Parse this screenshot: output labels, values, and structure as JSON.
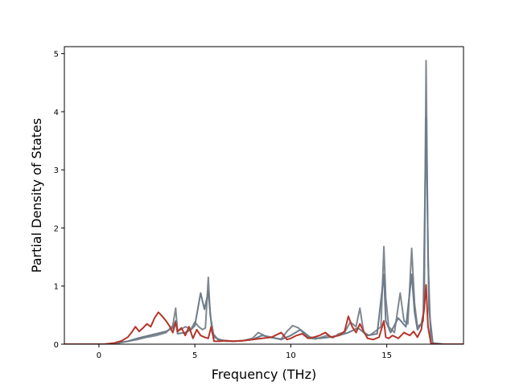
{
  "chart_data": {
    "type": "line",
    "title": "",
    "xlabel": "Frequency (THz)",
    "ylabel": "Partial Density of States",
    "xlim": [
      -1.8,
      19.0
    ],
    "ylim": [
      0,
      5.12
    ],
    "x_ticks": [
      0,
      5,
      10,
      15
    ],
    "y_ticks": [
      0,
      1,
      2,
      3,
      4,
      5
    ],
    "grid": false,
    "legend": "none",
    "series": [
      {
        "color": "#808890",
        "x": [
          -1.8,
          0.3,
          1.0,
          1.5,
          2.0,
          2.5,
          3.0,
          3.5,
          3.85,
          4.0,
          4.1,
          4.5,
          4.8,
          5.0,
          5.2,
          5.4,
          5.55,
          5.7,
          5.8,
          6.0,
          6.3,
          6.6,
          7.0,
          7.5,
          8.0,
          8.3,
          8.6,
          8.9,
          9.2,
          9.5,
          9.8,
          10.1,
          10.4,
          10.7,
          11.0,
          11.3,
          11.6,
          11.9,
          12.2,
          12.5,
          12.8,
          13.1,
          13.4,
          13.6,
          13.8,
          14.1,
          14.4,
          14.7,
          14.85,
          14.95,
          15.1,
          15.4,
          15.7,
          15.9,
          16.1,
          16.3,
          16.45,
          16.6,
          16.8,
          16.95,
          17.05,
          17.15,
          17.3,
          17.5,
          18.0,
          19.0
        ],
        "y": [
          0,
          0,
          0.02,
          0.05,
          0.08,
          0.12,
          0.15,
          0.2,
          0.32,
          0.62,
          0.22,
          0.3,
          0.26,
          0.38,
          0.3,
          0.25,
          0.28,
          1.15,
          0.5,
          0.12,
          0.08,
          0.05,
          0.05,
          0.06,
          0.1,
          0.2,
          0.15,
          0.12,
          0.1,
          0.09,
          0.22,
          0.32,
          0.28,
          0.18,
          0.1,
          0.09,
          0.12,
          0.15,
          0.11,
          0.18,
          0.2,
          0.38,
          0.3,
          0.62,
          0.2,
          0.15,
          0.22,
          0.3,
          1.68,
          0.8,
          0.3,
          0.2,
          0.88,
          0.4,
          0.35,
          1.65,
          0.7,
          0.3,
          0.35,
          0.6,
          4.88,
          1.5,
          0.02,
          0,
          0,
          0
        ]
      },
      {
        "color": "#6c7b8a",
        "x": [
          -1.8,
          0.3,
          1.0,
          1.5,
          2.0,
          2.5,
          3.0,
          3.5,
          3.85,
          4.0,
          4.1,
          4.5,
          4.8,
          5.0,
          5.3,
          5.5,
          5.7,
          5.9,
          6.2,
          6.6,
          7.0,
          7.5,
          8.0,
          8.5,
          9.0,
          9.5,
          10.0,
          10.5,
          11.0,
          11.5,
          12.0,
          12.5,
          13.0,
          13.5,
          14.0,
          14.5,
          14.85,
          14.95,
          15.2,
          15.6,
          16.0,
          16.3,
          16.45,
          16.6,
          16.9,
          17.05,
          17.2,
          17.4,
          18.0,
          19.0
        ],
        "y": [
          0,
          0,
          0.02,
          0.05,
          0.1,
          0.14,
          0.18,
          0.22,
          0.28,
          0.4,
          0.18,
          0.2,
          0.25,
          0.32,
          0.88,
          0.6,
          0.9,
          0.2,
          0.08,
          0.06,
          0.05,
          0.06,
          0.08,
          0.15,
          0.12,
          0.08,
          0.15,
          0.25,
          0.12,
          0.1,
          0.12,
          0.15,
          0.2,
          0.28,
          0.15,
          0.18,
          1.2,
          0.4,
          0.2,
          0.45,
          0.3,
          1.2,
          0.55,
          0.25,
          0.4,
          3.9,
          0.6,
          0.02,
          0,
          0
        ]
      },
      {
        "color": "#b5352a",
        "x": [
          -1.8,
          0.3,
          0.8,
          1.2,
          1.5,
          1.7,
          1.9,
          2.1,
          2.3,
          2.5,
          2.7,
          2.9,
          3.1,
          3.3,
          3.5,
          3.7,
          3.85,
          4.0,
          4.1,
          4.3,
          4.5,
          4.7,
          4.9,
          5.1,
          5.3,
          5.5,
          5.7,
          5.85,
          6.0,
          6.3,
          6.6,
          7.0,
          7.5,
          8.0,
          8.5,
          9.0,
          9.5,
          9.8,
          10.0,
          10.3,
          10.6,
          10.9,
          11.2,
          11.5,
          11.8,
          12.1,
          12.5,
          12.8,
          13.0,
          13.2,
          13.4,
          13.6,
          13.8,
          14.0,
          14.3,
          14.6,
          14.85,
          14.95,
          15.1,
          15.3,
          15.6,
          15.9,
          16.2,
          16.4,
          16.6,
          16.8,
          16.95,
          17.05,
          17.15,
          17.3,
          17.5,
          18.0,
          19.0
        ],
        "y": [
          0,
          0,
          0.02,
          0.06,
          0.12,
          0.2,
          0.3,
          0.22,
          0.28,
          0.35,
          0.3,
          0.45,
          0.55,
          0.48,
          0.4,
          0.3,
          0.2,
          0.38,
          0.22,
          0.28,
          0.15,
          0.3,
          0.1,
          0.25,
          0.15,
          0.12,
          0.1,
          0.3,
          0.05,
          0.05,
          0.06,
          0.05,
          0.06,
          0.08,
          0.1,
          0.12,
          0.2,
          0.08,
          0.1,
          0.15,
          0.18,
          0.1,
          0.12,
          0.15,
          0.2,
          0.12,
          0.15,
          0.22,
          0.48,
          0.3,
          0.2,
          0.35,
          0.22,
          0.1,
          0.08,
          0.12,
          0.4,
          0.12,
          0.1,
          0.15,
          0.1,
          0.2,
          0.15,
          0.22,
          0.12,
          0.25,
          0.6,
          1.02,
          0.3,
          0.02,
          0,
          0,
          0
        ]
      }
    ]
  }
}
